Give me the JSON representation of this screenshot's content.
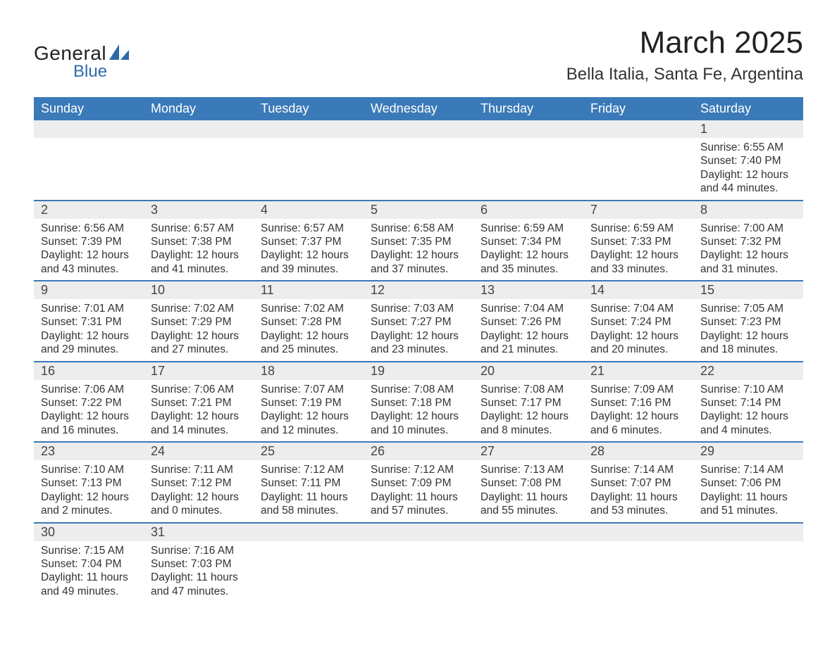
{
  "logo": {
    "word1": "General",
    "word2": "Blue",
    "shape_color": "#2f6aa8",
    "text_color": "#222222"
  },
  "title": "March 2025",
  "subtitle": "Bella Italia, Santa Fe, Argentina",
  "colors": {
    "header_bg": "#3b7ab8",
    "header_text": "#ffffff",
    "daynum_bg": "#ededed",
    "row_border": "#3b7ab8",
    "body_text": "#333333",
    "page_bg": "#ffffff"
  },
  "fontsize": {
    "title": 44,
    "subtitle": 24,
    "weekday": 18,
    "daynum": 18,
    "cell": 15.5
  },
  "weekdays": [
    "Sunday",
    "Monday",
    "Tuesday",
    "Wednesday",
    "Thursday",
    "Friday",
    "Saturday"
  ],
  "weeks": [
    {
      "nums": [
        "",
        "",
        "",
        "",
        "",
        "",
        "1"
      ],
      "cells": [
        null,
        null,
        null,
        null,
        null,
        null,
        {
          "sunrise": "Sunrise: 6:55 AM",
          "sunset": "Sunset: 7:40 PM",
          "day1": "Daylight: 12 hours",
          "day2": "and 44 minutes."
        }
      ]
    },
    {
      "nums": [
        "2",
        "3",
        "4",
        "5",
        "6",
        "7",
        "8"
      ],
      "cells": [
        {
          "sunrise": "Sunrise: 6:56 AM",
          "sunset": "Sunset: 7:39 PM",
          "day1": "Daylight: 12 hours",
          "day2": "and 43 minutes."
        },
        {
          "sunrise": "Sunrise: 6:57 AM",
          "sunset": "Sunset: 7:38 PM",
          "day1": "Daylight: 12 hours",
          "day2": "and 41 minutes."
        },
        {
          "sunrise": "Sunrise: 6:57 AM",
          "sunset": "Sunset: 7:37 PM",
          "day1": "Daylight: 12 hours",
          "day2": "and 39 minutes."
        },
        {
          "sunrise": "Sunrise: 6:58 AM",
          "sunset": "Sunset: 7:35 PM",
          "day1": "Daylight: 12 hours",
          "day2": "and 37 minutes."
        },
        {
          "sunrise": "Sunrise: 6:59 AM",
          "sunset": "Sunset: 7:34 PM",
          "day1": "Daylight: 12 hours",
          "day2": "and 35 minutes."
        },
        {
          "sunrise": "Sunrise: 6:59 AM",
          "sunset": "Sunset: 7:33 PM",
          "day1": "Daylight: 12 hours",
          "day2": "and 33 minutes."
        },
        {
          "sunrise": "Sunrise: 7:00 AM",
          "sunset": "Sunset: 7:32 PM",
          "day1": "Daylight: 12 hours",
          "day2": "and 31 minutes."
        }
      ]
    },
    {
      "nums": [
        "9",
        "10",
        "11",
        "12",
        "13",
        "14",
        "15"
      ],
      "cells": [
        {
          "sunrise": "Sunrise: 7:01 AM",
          "sunset": "Sunset: 7:31 PM",
          "day1": "Daylight: 12 hours",
          "day2": "and 29 minutes."
        },
        {
          "sunrise": "Sunrise: 7:02 AM",
          "sunset": "Sunset: 7:29 PM",
          "day1": "Daylight: 12 hours",
          "day2": "and 27 minutes."
        },
        {
          "sunrise": "Sunrise: 7:02 AM",
          "sunset": "Sunset: 7:28 PM",
          "day1": "Daylight: 12 hours",
          "day2": "and 25 minutes."
        },
        {
          "sunrise": "Sunrise: 7:03 AM",
          "sunset": "Sunset: 7:27 PM",
          "day1": "Daylight: 12 hours",
          "day2": "and 23 minutes."
        },
        {
          "sunrise": "Sunrise: 7:04 AM",
          "sunset": "Sunset: 7:26 PM",
          "day1": "Daylight: 12 hours",
          "day2": "and 21 minutes."
        },
        {
          "sunrise": "Sunrise: 7:04 AM",
          "sunset": "Sunset: 7:24 PM",
          "day1": "Daylight: 12 hours",
          "day2": "and 20 minutes."
        },
        {
          "sunrise": "Sunrise: 7:05 AM",
          "sunset": "Sunset: 7:23 PM",
          "day1": "Daylight: 12 hours",
          "day2": "and 18 minutes."
        }
      ]
    },
    {
      "nums": [
        "16",
        "17",
        "18",
        "19",
        "20",
        "21",
        "22"
      ],
      "cells": [
        {
          "sunrise": "Sunrise: 7:06 AM",
          "sunset": "Sunset: 7:22 PM",
          "day1": "Daylight: 12 hours",
          "day2": "and 16 minutes."
        },
        {
          "sunrise": "Sunrise: 7:06 AM",
          "sunset": "Sunset: 7:21 PM",
          "day1": "Daylight: 12 hours",
          "day2": "and 14 minutes."
        },
        {
          "sunrise": "Sunrise: 7:07 AM",
          "sunset": "Sunset: 7:19 PM",
          "day1": "Daylight: 12 hours",
          "day2": "and 12 minutes."
        },
        {
          "sunrise": "Sunrise: 7:08 AM",
          "sunset": "Sunset: 7:18 PM",
          "day1": "Daylight: 12 hours",
          "day2": "and 10 minutes."
        },
        {
          "sunrise": "Sunrise: 7:08 AM",
          "sunset": "Sunset: 7:17 PM",
          "day1": "Daylight: 12 hours",
          "day2": "and 8 minutes."
        },
        {
          "sunrise": "Sunrise: 7:09 AM",
          "sunset": "Sunset: 7:16 PM",
          "day1": "Daylight: 12 hours",
          "day2": "and 6 minutes."
        },
        {
          "sunrise": "Sunrise: 7:10 AM",
          "sunset": "Sunset: 7:14 PM",
          "day1": "Daylight: 12 hours",
          "day2": "and 4 minutes."
        }
      ]
    },
    {
      "nums": [
        "23",
        "24",
        "25",
        "26",
        "27",
        "28",
        "29"
      ],
      "cells": [
        {
          "sunrise": "Sunrise: 7:10 AM",
          "sunset": "Sunset: 7:13 PM",
          "day1": "Daylight: 12 hours",
          "day2": "and 2 minutes."
        },
        {
          "sunrise": "Sunrise: 7:11 AM",
          "sunset": "Sunset: 7:12 PM",
          "day1": "Daylight: 12 hours",
          "day2": "and 0 minutes."
        },
        {
          "sunrise": "Sunrise: 7:12 AM",
          "sunset": "Sunset: 7:11 PM",
          "day1": "Daylight: 11 hours",
          "day2": "and 58 minutes."
        },
        {
          "sunrise": "Sunrise: 7:12 AM",
          "sunset": "Sunset: 7:09 PM",
          "day1": "Daylight: 11 hours",
          "day2": "and 57 minutes."
        },
        {
          "sunrise": "Sunrise: 7:13 AM",
          "sunset": "Sunset: 7:08 PM",
          "day1": "Daylight: 11 hours",
          "day2": "and 55 minutes."
        },
        {
          "sunrise": "Sunrise: 7:14 AM",
          "sunset": "Sunset: 7:07 PM",
          "day1": "Daylight: 11 hours",
          "day2": "and 53 minutes."
        },
        {
          "sunrise": "Sunrise: 7:14 AM",
          "sunset": "Sunset: 7:06 PM",
          "day1": "Daylight: 11 hours",
          "day2": "and 51 minutes."
        }
      ]
    },
    {
      "nums": [
        "30",
        "31",
        "",
        "",
        "",
        "",
        ""
      ],
      "cells": [
        {
          "sunrise": "Sunrise: 7:15 AM",
          "sunset": "Sunset: 7:04 PM",
          "day1": "Daylight: 11 hours",
          "day2": "and 49 minutes."
        },
        {
          "sunrise": "Sunrise: 7:16 AM",
          "sunset": "Sunset: 7:03 PM",
          "day1": "Daylight: 11 hours",
          "day2": "and 47 minutes."
        },
        null,
        null,
        null,
        null,
        null
      ]
    }
  ]
}
